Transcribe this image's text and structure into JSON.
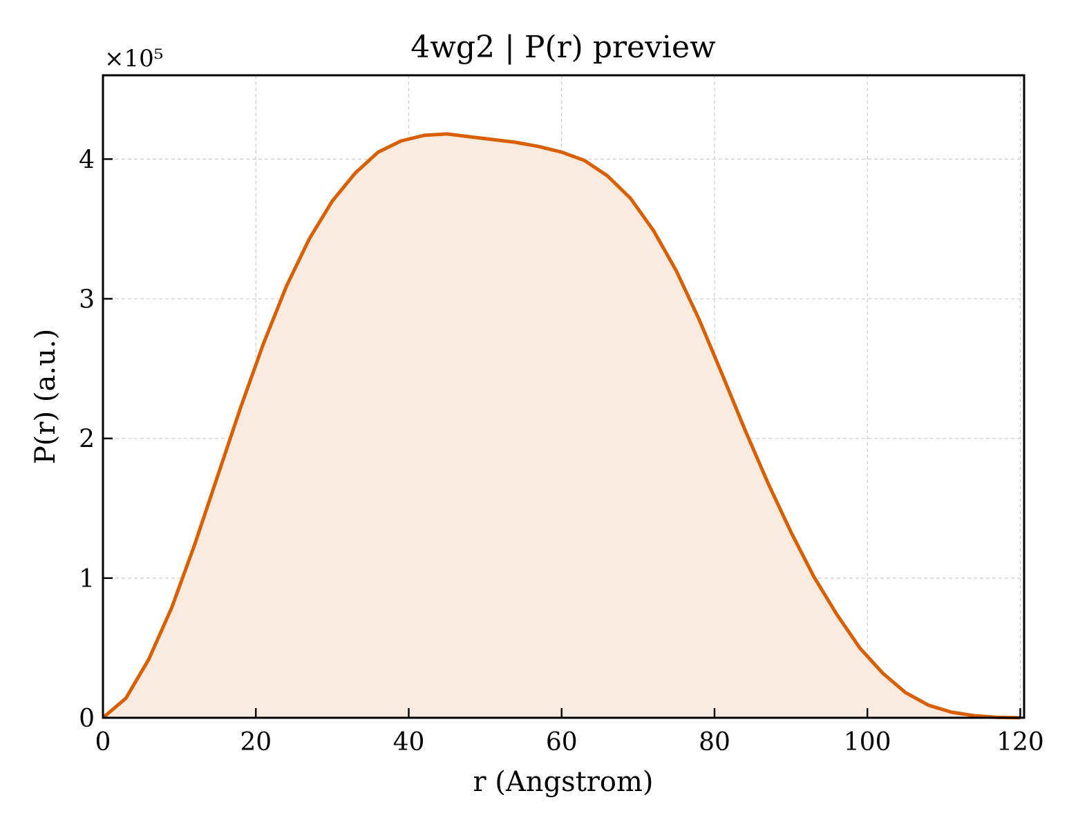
{
  "chart_data": {
    "type": "area",
    "title": "4wg2 | P(r) preview",
    "xlabel": "r (Angstrom)",
    "ylabel": "P(r) (a.u.)",
    "y_multiplier_label": "×10⁵",
    "xlim": [
      0,
      120.5
    ],
    "ylim": [
      0,
      4.6
    ],
    "x_ticks": [
      0,
      20,
      40,
      60,
      80,
      100,
      120
    ],
    "y_ticks": [
      0,
      1,
      2,
      3,
      4
    ],
    "grid": true,
    "line_color": "#d95f02",
    "fill_color": "#f9ebe0",
    "series": [
      {
        "x": [
          0,
          3,
          6,
          9,
          12,
          15,
          18,
          21,
          24,
          27,
          30,
          33,
          36,
          39,
          42,
          45,
          48,
          51,
          54,
          57,
          60,
          63,
          66,
          69,
          72,
          75,
          78,
          81,
          84,
          87,
          90,
          93,
          96,
          99,
          102,
          105,
          108,
          111,
          114,
          117,
          120
        ],
        "y": [
          0,
          0.14,
          0.42,
          0.79,
          1.24,
          1.73,
          2.22,
          2.68,
          3.09,
          3.43,
          3.7,
          3.9,
          4.05,
          4.13,
          4.17,
          4.18,
          4.16,
          4.14,
          4.12,
          4.09,
          4.05,
          3.99,
          3.88,
          3.72,
          3.49,
          3.2,
          2.85,
          2.46,
          2.06,
          1.68,
          1.33,
          1.01,
          0.74,
          0.5,
          0.32,
          0.18,
          0.09,
          0.04,
          0.015,
          0.003,
          0.0
        ]
      }
    ]
  }
}
